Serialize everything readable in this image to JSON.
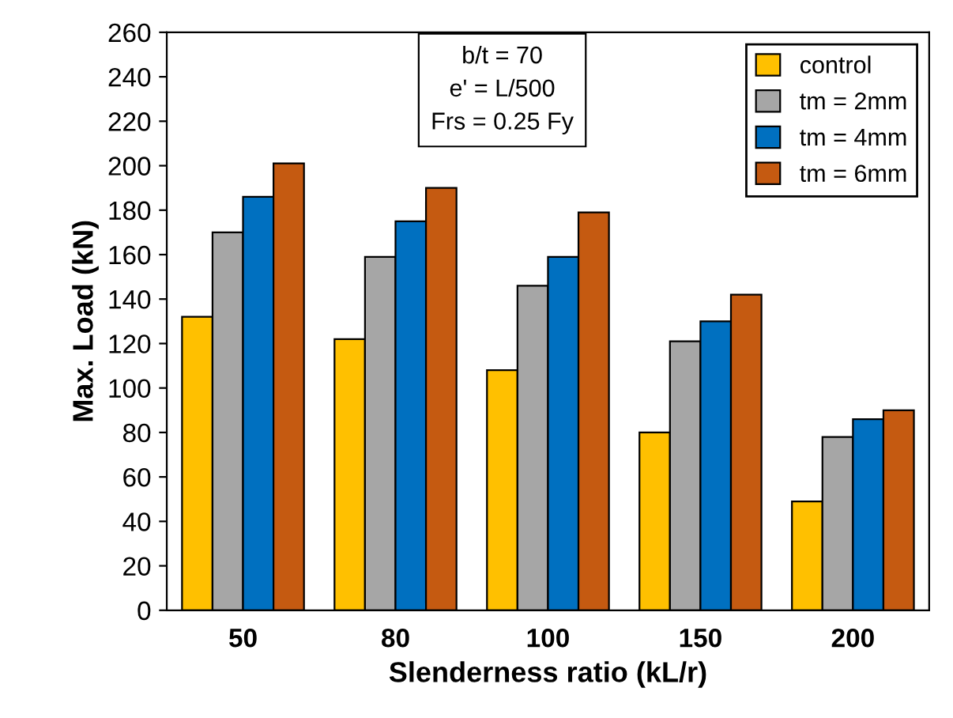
{
  "chart_data": {
    "type": "bar",
    "xlabel": "Slenderness ratio (kL/r)",
    "ylabel": "Max. Load (kN)",
    "categories": [
      "50",
      "80",
      "100",
      "150",
      "200"
    ],
    "series": [
      {
        "name": "control",
        "color": "#ffc000",
        "values": [
          132,
          122,
          108,
          80,
          49
        ]
      },
      {
        "name": "tm = 2mm",
        "color": "#a6a6a6",
        "values": [
          170,
          159,
          146,
          121,
          78
        ]
      },
      {
        "name": "tm = 4mm",
        "color": "#0070c0",
        "values": [
          186,
          175,
          159,
          130,
          86
        ]
      },
      {
        "name": "tm = 6mm",
        "color": "#c55a11",
        "values": [
          201,
          190,
          179,
          142,
          90
        ]
      }
    ],
    "ylim": [
      0,
      260
    ],
    "yticks": [
      0,
      20,
      40,
      60,
      80,
      100,
      120,
      140,
      160,
      180,
      200,
      220,
      240,
      260
    ],
    "annotations": [
      "b/t = 70\ne' = L/500\nFrs = 0.25 Fy"
    ],
    "legend": "top right",
    "grid": false
  }
}
